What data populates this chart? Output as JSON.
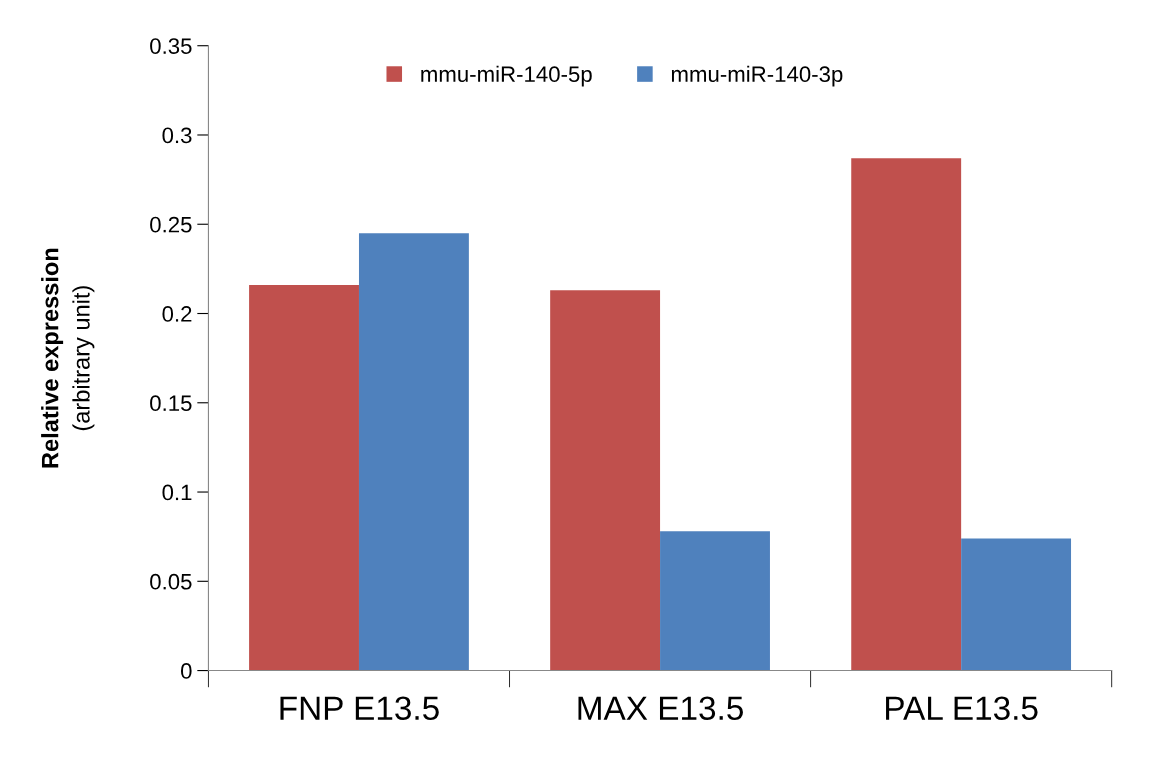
{
  "chart_data": {
    "type": "bar",
    "ylabel": "Relative expression\n(arbitrary unit)",
    "categories": [
      "FNP E13.5",
      "MAX E13.5",
      "PAL E13.5"
    ],
    "series": [
      {
        "name": "mmu-miR-140-5p",
        "color": "#c0504d",
        "values": [
          0.216,
          0.213,
          0.287
        ]
      },
      {
        "name": "mmu-miR-140-3p",
        "color": "#4f81bd",
        "values": [
          0.245,
          0.078,
          0.074
        ]
      }
    ],
    "ylim": [
      0,
      0.35
    ],
    "yticks": [
      0,
      0.05,
      0.1,
      0.15,
      0.2,
      0.25,
      0.3,
      0.35
    ],
    "grid": false,
    "legend": "top"
  }
}
